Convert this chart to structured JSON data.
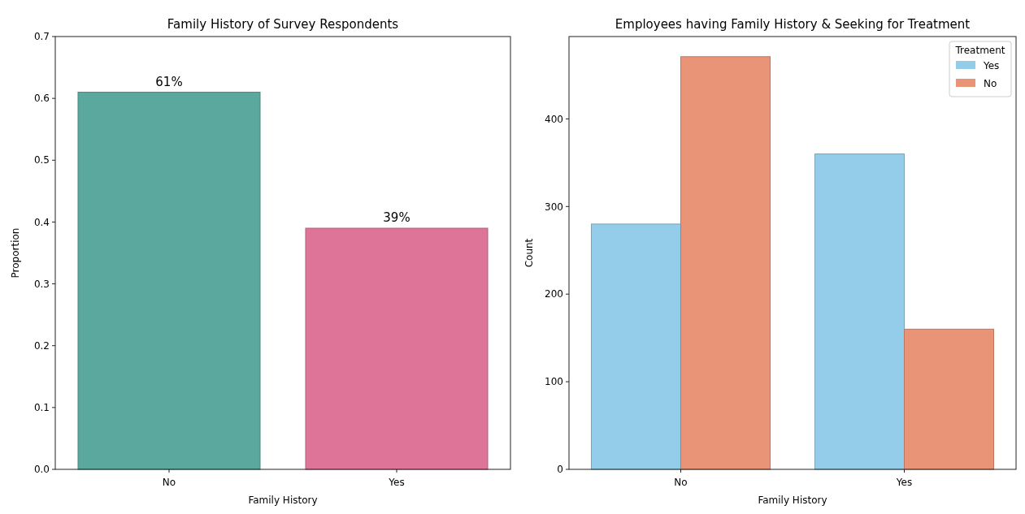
{
  "chart_data": [
    {
      "type": "bar",
      "title": "Family History of Survey Respondents",
      "xlabel": "Family History",
      "ylabel": "Proportion",
      "categories": [
        "No",
        "Yes"
      ],
      "values": [
        0.61,
        0.39
      ],
      "colors": [
        "#5aa89e",
        "#de7497"
      ],
      "value_labels": [
        "61%",
        "39%"
      ],
      "ylim": [
        0,
        0.7
      ],
      "yticks": [
        {
          "value": 0,
          "label": "0.0"
        },
        0.1,
        0.2,
        0.3,
        0.4,
        0.5,
        0.6,
        0.7
      ],
      "grid": false,
      "legend": false
    },
    {
      "type": "bar",
      "title": "Employees having Family History & Seeking for Treatment",
      "xlabel": "Family History",
      "ylabel": "Count",
      "categories": [
        "No",
        "Yes"
      ],
      "legend_title": "Treatment",
      "legend": "top right",
      "grid": false,
      "ylim": [
        0,
        494
      ],
      "yticks": [
        0,
        100,
        200,
        300,
        400
      ],
      "series": [
        {
          "name": "Yes",
          "color": "#93cdea",
          "values": [
            280,
            360
          ]
        },
        {
          "name": "No",
          "color": "#ea9477",
          "values": [
            471,
            160
          ]
        }
      ]
    }
  ]
}
